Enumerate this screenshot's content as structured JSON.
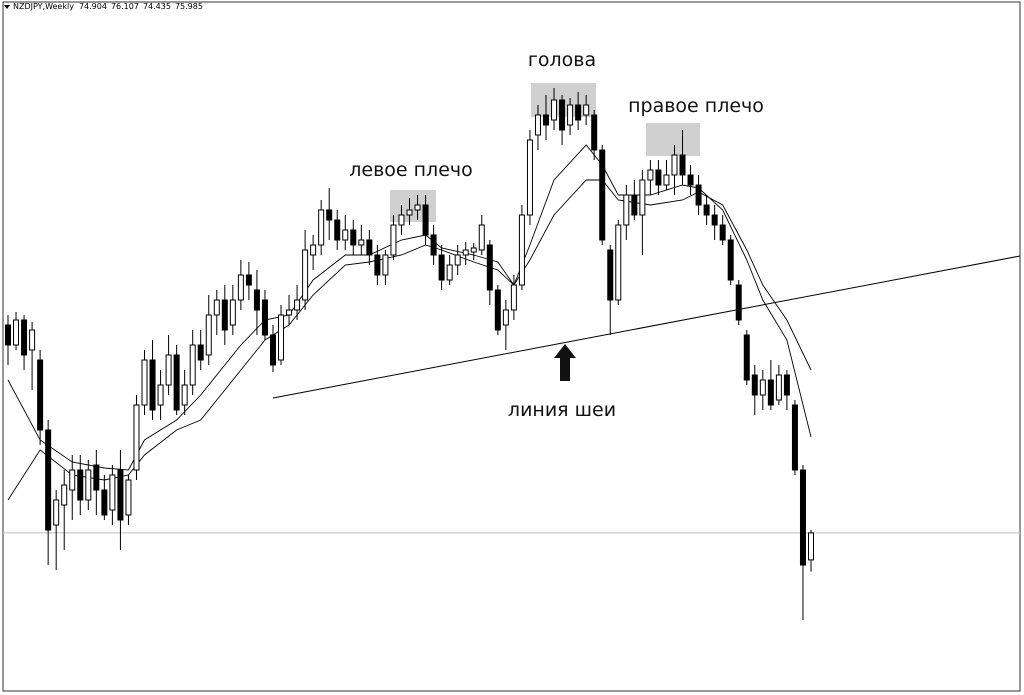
{
  "chart_data": {
    "type": "candlestick",
    "symbol": "NZDJPY,Weekly",
    "ylim": [
      69.7,
      97.3
    ],
    "up_color": "#ffffff",
    "down_color": "#000000",
    "line_color": "#000000",
    "open": [
      84.3,
      83.5,
      84.5,
      83.3,
      82.9,
      80.1,
      76.3,
      77.1,
      77.7,
      78.5,
      77.3,
      78.7,
      77.7,
      76.9,
      78.5,
      76.7,
      78.5,
      81.1,
      82.9,
      81.1,
      81.9,
      83.1,
      81.1,
      81.9,
      83.5,
      83.1,
      84.7,
      85.3,
      84.3,
      85.3,
      86.3,
      85.7,
      85.3,
      83.9,
      82.9,
      84.7,
      84.9,
      85.3,
      87.1,
      87.5,
      88.9,
      88.5,
      87.7,
      88.1,
      87.5,
      87.7,
      87.1,
      86.3,
      87.1,
      88.3,
      88.7,
      88.9,
      89.1,
      87.9,
      87.1,
      86.1,
      86.7,
      87.1,
      87.22,
      87.3,
      87.5,
      85.7,
      84.3,
      84.9,
      85.9,
      88.7,
      91.9,
      92.7,
      92.5,
      93.3,
      92.3,
      93.1,
      92.7,
      92.7,
      91.3,
      87.3,
      85.3,
      88.3,
      89.5,
      88.7,
      90.1,
      90.5,
      89.9,
      90.3,
      91.1,
      90.3,
      89.9,
      89.1,
      88.7,
      88.3,
      87.7,
      85.9,
      83.9,
      82.3,
      81.5,
      82.1,
      81.3,
      82.3,
      81.1,
      78.5,
      74.904
    ],
    "high": [
      84.7,
      84.82,
      84.7,
      84.42,
      83.3,
      80.5,
      77.7,
      78.5,
      79.1,
      79.1,
      78.9,
      79.3,
      78.3,
      78.7,
      79.3,
      78.3,
      81.5,
      83.3,
      83.7,
      82.5,
      83.9,
      83.5,
      82.5,
      84.1,
      84.1,
      85.5,
      85.7,
      85.9,
      85.9,
      86.9,
      86.82,
      86.5,
      85.7,
      84.3,
      85.1,
      85.5,
      85.9,
      88.1,
      87.9,
      89.3,
      89.78,
      88.9,
      88.7,
      88.5,
      88.3,
      88.1,
      87.5,
      87.3,
      88.7,
      89.1,
      89.38,
      89.5,
      89.5,
      88.3,
      87.5,
      87.1,
      87.5,
      87.62,
      87.58,
      88.7,
      87.7,
      85.9,
      85.3,
      86.3,
      89.1,
      92.1,
      93.1,
      93.5,
      93.78,
      93.5,
      93.38,
      93.62,
      93.5,
      92.9,
      91.5,
      87.5,
      88.5,
      89.9,
      90.1,
      90.5,
      90.9,
      90.9,
      90.9,
      91.5,
      92.1,
      90.7,
      90.3,
      89.5,
      89.1,
      88.7,
      87.9,
      86.1,
      84.1,
      82.7,
      82.5,
      82.9,
      82.7,
      82.5,
      81.3,
      78.7,
      76.107
    ],
    "low": [
      82.7,
      83.3,
      82.5,
      81.7,
      79.5,
      74.7,
      74.5,
      75.3,
      76.5,
      76.7,
      76.9,
      76.7,
      76.5,
      76.3,
      75.3,
      76.3,
      78.1,
      80.7,
      80.5,
      80.5,
      81.5,
      80.7,
      80.7,
      81.5,
      82.5,
      82.7,
      83.9,
      83.5,
      83.9,
      84.9,
      85.3,
      83.9,
      83.7,
      82.42,
      82.7,
      84.3,
      84.5,
      84.9,
      86.5,
      87.1,
      87.7,
      87.3,
      87.3,
      87.1,
      87.1,
      86.7,
      85.9,
      85.9,
      86.9,
      87.9,
      88.3,
      88.5,
      87.5,
      86.7,
      85.7,
      85.9,
      86.3,
      86.7,
      86.9,
      87.1,
      85.1,
      83.9,
      83.3,
      84.5,
      85.7,
      88.3,
      91.3,
      91.7,
      92.1,
      91.5,
      91.9,
      92.1,
      92.3,
      90.9,
      87.5,
      83.9,
      85.1,
      87.7,
      88.5,
      87.1,
      89.5,
      89.5,
      89.7,
      89.5,
      89.9,
      89.5,
      88.7,
      88.3,
      87.7,
      87.5,
      85.9,
      84.3,
      81.9,
      80.7,
      80.9,
      80.9,
      81.1,
      80.9,
      78.3,
      72.5,
      74.435
    ],
    "close": [
      83.5,
      84.5,
      83.1,
      84.1,
      80.1,
      76.1,
      77.3,
      77.9,
      78.5,
      77.3,
      78.5,
      77.7,
      76.7,
      78.3,
      76.5,
      78.1,
      81.1,
      82.9,
      80.9,
      81.9,
      83.1,
      80.9,
      81.9,
      83.5,
      82.9,
      84.7,
      85.3,
      84.1,
      85.3,
      86.3,
      85.9,
      84.9,
      83.9,
      82.7,
      84.7,
      84.9,
      85.3,
      87.3,
      87.5,
      88.9,
      88.5,
      87.7,
      88.1,
      87.5,
      87.7,
      87.1,
      86.3,
      87.1,
      88.3,
      88.7,
      88.9,
      89.1,
      87.9,
      87.1,
      86.1,
      86.7,
      87.1,
      87.3,
      87.38,
      88.3,
      85.7,
      84.1,
      84.9,
      85.9,
      88.7,
      91.7,
      92.7,
      92.3,
      93.3,
      92.1,
      93.1,
      92.5,
      93.1,
      91.3,
      87.7,
      85.3,
      88.3,
      89.5,
      88.7,
      90.1,
      90.5,
      89.9,
      90.3,
      91.1,
      90.3,
      89.9,
      89.1,
      88.7,
      88.3,
      87.7,
      86.1,
      84.5,
      82.1,
      81.5,
      82.1,
      81.1,
      82.3,
      81.5,
      78.5,
      74.7,
      75.985
    ],
    "moving_averages": [
      {
        "x": [
          0,
          4,
          8,
          12,
          15,
          17,
          21,
          24,
          29,
          32,
          35,
          38,
          42,
          45,
          49,
          52,
          54,
          58,
          61,
          63,
          65,
          68,
          72,
          74,
          76,
          80,
          84,
          86,
          89,
          92,
          94,
          97,
          100
        ],
        "values": [
          82.1,
          79.7,
          78.82,
          78.58,
          78.5,
          79.7,
          80.5,
          81.5,
          83.5,
          84.5,
          84.7,
          86.1,
          87.1,
          87.1,
          87.7,
          87.9,
          87.38,
          87.1,
          86.82,
          85.9,
          87.5,
          90.1,
          91.5,
          90.7,
          89.5,
          89.5,
          89.9,
          89.78,
          88.9,
          86.9,
          85.3,
          83.7,
          79.82
        ]
      },
      {
        "x": [
          0,
          4,
          8,
          12,
          15,
          17,
          21,
          24,
          29,
          32,
          35,
          38,
          42,
          45,
          49,
          52,
          54,
          58,
          61,
          63,
          65,
          68,
          72,
          74,
          76,
          80,
          84,
          86,
          89,
          92,
          94,
          97,
          100
        ],
        "values": [
          77.3,
          79.3,
          78.3,
          78.1,
          78.3,
          79.1,
          80.1,
          80.5,
          82.5,
          83.7,
          84.3,
          85.5,
          86.7,
          86.82,
          87.1,
          87.5,
          87.3,
          86.82,
          86.5,
          85.9,
          86.9,
          88.7,
          90.1,
          90.1,
          89.3,
          89.1,
          89.3,
          89.62,
          89.1,
          87.3,
          85.9,
          84.5,
          82.5
        ]
      }
    ],
    "annotations": [
      "левое плечо",
      "голова",
      "правое плечо",
      "линия шеи"
    ]
  }
}
